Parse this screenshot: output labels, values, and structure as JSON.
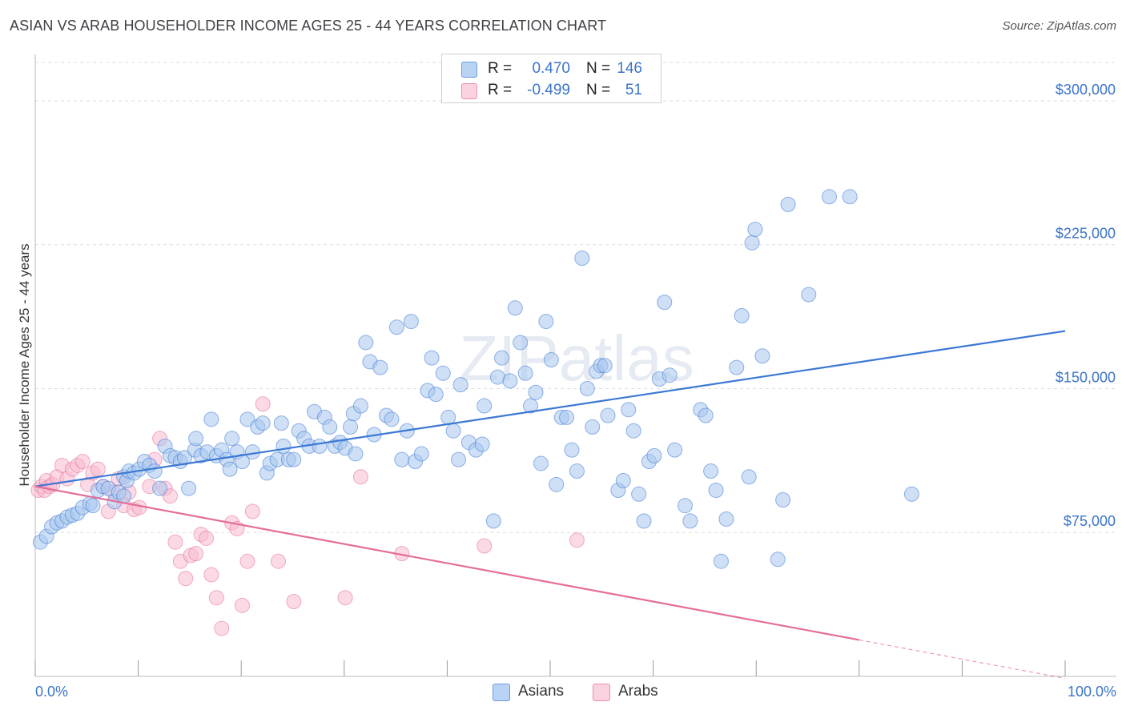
{
  "title": "ASIAN VS ARAB HOUSEHOLDER INCOME AGES 25 - 44 YEARS CORRELATION CHART",
  "source": "Source: ZipAtlas.com",
  "watermark": "ZIPatlas",
  "legend_top": {
    "rows": [
      {
        "r_label": "R =",
        "r_value": "0.470",
        "n_label": "N =",
        "n_value": "146",
        "color": "#9fc3ee",
        "border": "#6b9be0"
      },
      {
        "r_label": "R =",
        "r_value": "-0.499",
        "n_label": "N =",
        "n_value": "51",
        "color": "#f8c0d2",
        "border": "#e88fae"
      }
    ]
  },
  "legend_bottom": [
    {
      "label": "Asians",
      "color": "#b8d3f3",
      "border": "#6b9be0"
    },
    {
      "label": "Arabs",
      "color": "#fbd3e0",
      "border": "#e88fae"
    }
  ],
  "colors": {
    "asian": "#3b78d4",
    "asian_fill": "#a8c6ee",
    "arab": "#e46d99",
    "arab_fill": "#f7bcd0",
    "tick": "#3b74c9",
    "grid": "#dddddd"
  },
  "chart_data": {
    "type": "scatter",
    "title": "ASIAN VS ARAB HOUSEHOLDER INCOME AGES 25 - 44 YEARS CORRELATION CHART",
    "xlabel": "",
    "ylabel": "Householder Income Ages 25 - 44 years",
    "xlim": [
      0,
      100
    ],
    "ylim": [
      0,
      320000
    ],
    "x_tick_labels": [
      "0.0%",
      "100.0%"
    ],
    "y_ticks": [
      75000,
      150000,
      225000,
      300000
    ],
    "y_tick_labels": [
      "$75,000",
      "$150,000",
      "$225,000",
      "$300,000"
    ],
    "grid": true,
    "legend_position": "top-center",
    "series": [
      {
        "name": "Asians",
        "r": 0.47,
        "n": 146,
        "trend": {
          "x": [
            0,
            100
          ],
          "y": [
            99000,
            180000
          ]
        },
        "points": [
          [
            0.5,
            70000
          ],
          [
            1.1,
            73000
          ],
          [
            1.6,
            78000
          ],
          [
            2.1,
            80000
          ],
          [
            2.6,
            81000
          ],
          [
            3.1,
            83000
          ],
          [
            3.6,
            84000
          ],
          [
            4.1,
            85000
          ],
          [
            4.6,
            88000
          ],
          [
            5.3,
            90000
          ],
          [
            5.6,
            89000
          ],
          [
            6.1,
            97000
          ],
          [
            6.6,
            99000
          ],
          [
            7.1,
            98000
          ],
          [
            7.7,
            91000
          ],
          [
            8.1,
            96000
          ],
          [
            8.6,
            94000
          ],
          [
            8.6,
            104000
          ],
          [
            8.9,
            102000
          ],
          [
            9.1,
            107000
          ],
          [
            9.6,
            106000
          ],
          [
            10.1,
            108000
          ],
          [
            10.6,
            112000
          ],
          [
            11.1,
            110000
          ],
          [
            11.6,
            107000
          ],
          [
            12.1,
            98000
          ],
          [
            12.6,
            120000
          ],
          [
            13.1,
            115000
          ],
          [
            13.6,
            114000
          ],
          [
            14.1,
            112000
          ],
          [
            14.5,
            114000
          ],
          [
            14.9,
            98000
          ],
          [
            15.5,
            118000
          ],
          [
            15.6,
            124000
          ],
          [
            16.1,
            115000
          ],
          [
            16.7,
            117000
          ],
          [
            17.1,
            134000
          ],
          [
            17.6,
            115000
          ],
          [
            18.1,
            118000
          ],
          [
            18.6,
            113000
          ],
          [
            18.9,
            108000
          ],
          [
            19.1,
            124000
          ],
          [
            19.6,
            117000
          ],
          [
            20.1,
            112000
          ],
          [
            20.6,
            134000
          ],
          [
            21.1,
            117000
          ],
          [
            21.6,
            130000
          ],
          [
            22.1,
            132000
          ],
          [
            22.5,
            106000
          ],
          [
            22.8,
            111000
          ],
          [
            23.5,
            113000
          ],
          [
            23.9,
            132000
          ],
          [
            24.1,
            120000
          ],
          [
            24.6,
            113000
          ],
          [
            25.1,
            113000
          ],
          [
            25.6,
            128000
          ],
          [
            26.1,
            124000
          ],
          [
            26.6,
            120000
          ],
          [
            27.1,
            138000
          ],
          [
            27.6,
            120000
          ],
          [
            28.1,
            135000
          ],
          [
            28.6,
            130000
          ],
          [
            29.1,
            120000
          ],
          [
            29.6,
            122000
          ],
          [
            30.1,
            119000
          ],
          [
            30.6,
            130000
          ],
          [
            30.9,
            137000
          ],
          [
            31.1,
            116000
          ],
          [
            31.6,
            141000
          ],
          [
            32.1,
            174000
          ],
          [
            32.5,
            164000
          ],
          [
            32.9,
            126000
          ],
          [
            33.5,
            161000
          ],
          [
            34.1,
            136000
          ],
          [
            34.6,
            134000
          ],
          [
            35.1,
            182000
          ],
          [
            35.6,
            113000
          ],
          [
            36.1,
            128000
          ],
          [
            36.5,
            185000
          ],
          [
            36.9,
            112000
          ],
          [
            37.5,
            116000
          ],
          [
            38.1,
            149000
          ],
          [
            38.5,
            166000
          ],
          [
            38.9,
            147000
          ],
          [
            39.6,
            158000
          ],
          [
            40.1,
            135000
          ],
          [
            40.6,
            128000
          ],
          [
            41.1,
            113000
          ],
          [
            41.3,
            152000
          ],
          [
            42.1,
            122000
          ],
          [
            42.8,
            118000
          ],
          [
            43.4,
            121000
          ],
          [
            43.6,
            141000
          ],
          [
            44.5,
            81000
          ],
          [
            44.9,
            156000
          ],
          [
            45.3,
            166000
          ],
          [
            46.1,
            154000
          ],
          [
            46.6,
            192000
          ],
          [
            47.1,
            174000
          ],
          [
            47.6,
            158000
          ],
          [
            48.1,
            141000
          ],
          [
            48.6,
            148000
          ],
          [
            49.1,
            111000
          ],
          [
            49.6,
            185000
          ],
          [
            50.1,
            165000
          ],
          [
            50.6,
            100000
          ],
          [
            51.1,
            135000
          ],
          [
            51.6,
            135000
          ],
          [
            52.1,
            118000
          ],
          [
            52.6,
            107000
          ],
          [
            53.1,
            218000
          ],
          [
            53.6,
            150000
          ],
          [
            54.1,
            130000
          ],
          [
            54.5,
            159000
          ],
          [
            54.9,
            162000
          ],
          [
            55.3,
            162000
          ],
          [
            55.6,
            136000
          ],
          [
            56.6,
            97000
          ],
          [
            57.1,
            102000
          ],
          [
            57.6,
            139000
          ],
          [
            58.1,
            128000
          ],
          [
            58.6,
            95000
          ],
          [
            59.1,
            81000
          ],
          [
            59.6,
            112000
          ],
          [
            60.1,
            115000
          ],
          [
            60.6,
            155000
          ],
          [
            61.1,
            195000
          ],
          [
            61.6,
            157000
          ],
          [
            62.1,
            118000
          ],
          [
            63.1,
            89000
          ],
          [
            63.6,
            81000
          ],
          [
            64.6,
            139000
          ],
          [
            65.1,
            136000
          ],
          [
            65.6,
            107000
          ],
          [
            66.1,
            97000
          ],
          [
            66.6,
            60000
          ],
          [
            67.1,
            82000
          ],
          [
            68.1,
            161000
          ],
          [
            68.6,
            188000
          ],
          [
            69.3,
            104000
          ],
          [
            69.6,
            226000
          ],
          [
            69.9,
            233000
          ],
          [
            70.6,
            167000
          ],
          [
            72.1,
            61000
          ],
          [
            72.6,
            92000
          ],
          [
            73.1,
            246000
          ],
          [
            75.1,
            199000
          ],
          [
            77.1,
            250000
          ],
          [
            79.1,
            250000
          ],
          [
            85.1,
            95000
          ]
        ]
      },
      {
        "name": "Arabs",
        "r": -0.499,
        "n": 51,
        "trend": {
          "x": [
            0,
            80
          ],
          "y": [
            99000,
            19000
          ]
        },
        "points": [
          [
            0.3,
            97000
          ],
          [
            0.6,
            99000
          ],
          [
            0.9,
            97000
          ],
          [
            1.1,
            102000
          ],
          [
            1.4,
            99000
          ],
          [
            1.7,
            100000
          ],
          [
            2.1,
            104000
          ],
          [
            2.6,
            110000
          ],
          [
            3.1,
            103000
          ],
          [
            3.6,
            108000
          ],
          [
            4.1,
            110000
          ],
          [
            4.6,
            112000
          ],
          [
            5.1,
            100000
          ],
          [
            5.6,
            106000
          ],
          [
            6.1,
            108000
          ],
          [
            6.6,
            99000
          ],
          [
            7.1,
            86000
          ],
          [
            7.6,
            96000
          ],
          [
            8.1,
            103000
          ],
          [
            8.6,
            89000
          ],
          [
            9.1,
            96000
          ],
          [
            9.6,
            87000
          ],
          [
            10.1,
            88000
          ],
          [
            11.1,
            99000
          ],
          [
            11.6,
            113000
          ],
          [
            12.1,
            124000
          ],
          [
            12.6,
            98000
          ],
          [
            13.1,
            94000
          ],
          [
            13.6,
            70000
          ],
          [
            14.1,
            60000
          ],
          [
            14.6,
            51000
          ],
          [
            15.1,
            63000
          ],
          [
            15.6,
            64000
          ],
          [
            16.1,
            74000
          ],
          [
            16.6,
            72000
          ],
          [
            17.1,
            53000
          ],
          [
            17.6,
            41000
          ],
          [
            18.1,
            25000
          ],
          [
            19.1,
            80000
          ],
          [
            19.6,
            77000
          ],
          [
            20.1,
            37000
          ],
          [
            20.6,
            60000
          ],
          [
            21.1,
            86000
          ],
          [
            22.1,
            142000
          ],
          [
            23.6,
            60000
          ],
          [
            25.1,
            39000
          ],
          [
            30.1,
            41000
          ],
          [
            31.6,
            104000
          ],
          [
            35.6,
            64000
          ],
          [
            43.6,
            68000
          ],
          [
            52.6,
            71000
          ]
        ]
      }
    ]
  }
}
